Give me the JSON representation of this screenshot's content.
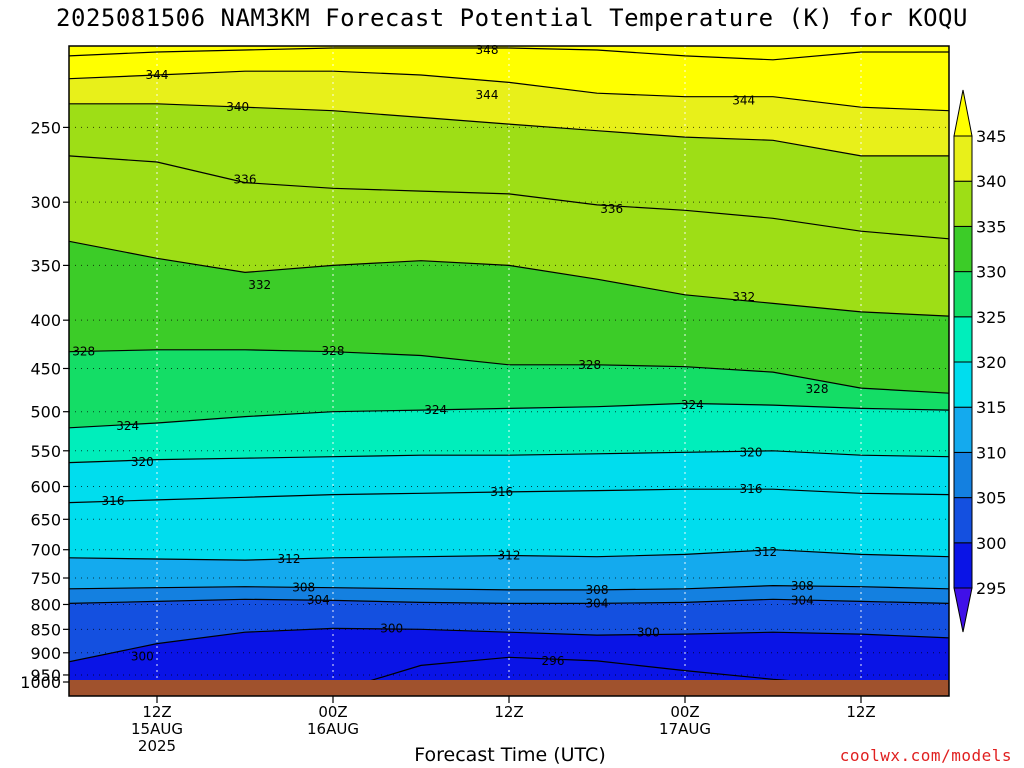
{
  "title": "2025081506 NAM3KM Forecast Potential Temperature (K) for KOQU",
  "credit": "coolwx.com/models",
  "chart_data": {
    "type": "heatmap",
    "title": "2025081506 NAM3KM Forecast Potential Temperature (K) for KOQU",
    "xlabel": "Forecast Time (UTC)",
    "ylabel": "",
    "y_axis": {
      "log_pressure": true,
      "range": [
        1000,
        205
      ],
      "ticks": [
        250,
        300,
        350,
        400,
        450,
        500,
        550,
        600,
        650,
        700,
        750,
        800,
        850,
        900,
        950,
        1000
      ]
    },
    "x_axis": {
      "range_hours": [
        0,
        60
      ],
      "ticks": [
        {
          "hour": 6,
          "lines": [
            "12Z",
            "15AUG",
            "2025"
          ]
        },
        {
          "hour": 18,
          "lines": [
            "00Z",
            "16AUG"
          ]
        },
        {
          "hour": 30,
          "lines": [
            "12Z"
          ]
        },
        {
          "hour": 42,
          "lines": [
            "00Z",
            "17AUG"
          ]
        },
        {
          "hour": 54,
          "lines": [
            "12Z"
          ]
        }
      ]
    },
    "colorbar": {
      "levels": [
        295,
        300,
        305,
        310,
        315,
        320,
        325,
        330,
        335,
        340,
        345
      ],
      "colors": [
        "#4010e8",
        "#0a14e6",
        "#1450e0",
        "#1480e0",
        "#14aaee",
        "#00ddee",
        "#00eebb",
        "#14dd66",
        "#3ccc28",
        "#9ede16",
        "#e8f01a",
        "#ffff00"
      ]
    },
    "contours": [
      {
        "value": 348,
        "p": [
          210,
          208,
          207,
          206,
          206,
          206,
          207,
          210,
          212,
          208,
          208
        ]
      },
      {
        "value": 344,
        "p": [
          222,
          220,
          218,
          218,
          220,
          224,
          230,
          232,
          232,
          238,
          240
        ]
      },
      {
        "value": 340,
        "p": [
          236,
          236,
          238,
          240,
          244,
          248,
          252,
          256,
          258,
          268,
          268
        ]
      },
      {
        "value": 336,
        "p": [
          268,
          272,
          286,
          290,
          292,
          294,
          302,
          306,
          312,
          322,
          328
        ]
      },
      {
        "value": 332,
        "p": [
          330,
          344,
          356,
          350,
          346,
          350,
          362,
          376,
          384,
          392,
          396
        ]
      },
      {
        "value": 328,
        "p": [
          432,
          430,
          430,
          432,
          436,
          446,
          446,
          448,
          454,
          472,
          478
        ]
      },
      {
        "value": 324,
        "p": [
          520,
          514,
          506,
          500,
          498,
          496,
          494,
          490,
          492,
          496,
          498
        ]
      },
      {
        "value": 320,
        "p": [
          566,
          562,
          560,
          558,
          556,
          556,
          554,
          552,
          550,
          556,
          558
        ]
      },
      {
        "value": 316,
        "p": [
          624,
          620,
          616,
          612,
          610,
          608,
          606,
          604,
          604,
          610,
          612
        ]
      },
      {
        "value": 312,
        "p": [
          714,
          716,
          718,
          714,
          712,
          710,
          712,
          708,
          700,
          708,
          712
        ]
      },
      {
        "value": 308,
        "p": [
          770,
          768,
          766,
          768,
          770,
          772,
          772,
          770,
          764,
          766,
          770
        ]
      },
      {
        "value": 304,
        "p": [
          798,
          794,
          790,
          792,
          796,
          798,
          798,
          796,
          790,
          794,
          798
        ]
      },
      {
        "value": 300,
        "p": [
          920,
          880,
          856,
          848,
          850,
          856,
          862,
          860,
          856,
          860,
          868
        ]
      },
      {
        "value": 296,
        "p": [
          1000,
          996,
          992,
          990,
          928,
          910,
          918,
          940,
          960,
          976,
          990
        ]
      }
    ],
    "labels": [
      {
        "text": "348",
        "hour": 28.5,
        "p": 207
      },
      {
        "text": "344",
        "hour": 6,
        "p": 220
      },
      {
        "text": "344",
        "hour": 28.5,
        "p": 231
      },
      {
        "text": "344",
        "hour": 46,
        "p": 234
      },
      {
        "text": "340",
        "hour": 11.5,
        "p": 238
      },
      {
        "text": "336",
        "hour": 12,
        "p": 284
      },
      {
        "text": "336",
        "hour": 37,
        "p": 305
      },
      {
        "text": "332",
        "hour": 13,
        "p": 367
      },
      {
        "text": "332",
        "hour": 46,
        "p": 378
      },
      {
        "text": "328",
        "hour": 1,
        "p": 432
      },
      {
        "text": "328",
        "hour": 18,
        "p": 431
      },
      {
        "text": "328",
        "hour": 35.5,
        "p": 446
      },
      {
        "text": "328",
        "hour": 51,
        "p": 473
      },
      {
        "text": "324",
        "hour": 4,
        "p": 518
      },
      {
        "text": "324",
        "hour": 25,
        "p": 498
      },
      {
        "text": "324",
        "hour": 42.5,
        "p": 492
      },
      {
        "text": "320",
        "hour": 5,
        "p": 565
      },
      {
        "text": "320",
        "hour": 46.5,
        "p": 552
      },
      {
        "text": "316",
        "hour": 3,
        "p": 622
      },
      {
        "text": "316",
        "hour": 29.5,
        "p": 608
      },
      {
        "text": "316",
        "hour": 46.5,
        "p": 604
      },
      {
        "text": "312",
        "hour": 15,
        "p": 716
      },
      {
        "text": "312",
        "hour": 30,
        "p": 710
      },
      {
        "text": "312",
        "hour": 47.5,
        "p": 704
      },
      {
        "text": "308",
        "hour": 16,
        "p": 768
      },
      {
        "text": "308",
        "hour": 36,
        "p": 772
      },
      {
        "text": "308",
        "hour": 50,
        "p": 765
      },
      {
        "text": "304",
        "hour": 17,
        "p": 791
      },
      {
        "text": "304",
        "hour": 36,
        "p": 798
      },
      {
        "text": "304",
        "hour": 50,
        "p": 792
      },
      {
        "text": "300",
        "hour": 5,
        "p": 908
      },
      {
        "text": "300",
        "hour": 22,
        "p": 848
      },
      {
        "text": "300",
        "hour": 39.5,
        "p": 857
      },
      {
        "text": "296",
        "hour": 33,
        "p": 918
      },
      {
        "text": "296",
        "hour": 51,
        "p": 976
      }
    ],
    "grid": true
  }
}
